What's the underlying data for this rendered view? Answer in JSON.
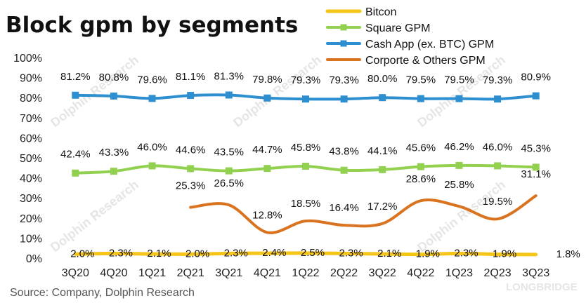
{
  "chart_data": {
    "type": "line",
    "title": "Block gpm by segments",
    "categories": [
      "3Q20",
      "4Q20",
      "1Q21",
      "2Q21",
      "3Q21",
      "4Q21",
      "1Q22",
      "2Q22",
      "3Q22",
      "4Q22",
      "1Q23",
      "2Q23",
      "3Q23"
    ],
    "yticks": [
      "0%",
      "10%",
      "20%",
      "30%",
      "40%",
      "50%",
      "60%",
      "70%",
      "80%",
      "90%",
      "100%"
    ],
    "ylim": [
      0,
      100
    ],
    "legend_position": "top-right",
    "series": [
      {
        "name": "Bitcon",
        "color": "#f5c518",
        "marker": "none",
        "values": [
          2.0,
          2.3,
          2.1,
          2.0,
          2.3,
          2.4,
          2.5,
          2.3,
          2.1,
          1.9,
          2.3,
          1.9,
          1.8
        ],
        "labels": [
          "2.0%",
          "2.3%",
          "2.1%",
          "2.0%",
          "2.3%",
          "2.4%",
          "2.5%",
          "2.3%",
          "2.1%",
          "1.9%",
          "2.3%",
          "1.9%",
          "1.8%"
        ]
      },
      {
        "name": "Square GPM",
        "color": "#92d050",
        "marker": "square",
        "values": [
          42.4,
          43.3,
          46.0,
          44.6,
          43.5,
          44.7,
          45.8,
          43.8,
          44.1,
          45.6,
          46.2,
          46.0,
          45.3
        ],
        "labels": [
          "42.4%",
          "43.3%",
          "46.0%",
          "44.6%",
          "43.5%",
          "44.7%",
          "45.8%",
          "43.8%",
          "44.1%",
          "45.6%",
          "46.2%",
          "46.0%",
          "45.3%"
        ]
      },
      {
        "name": "Cash App (ex. BTC) GPM",
        "color": "#2e8fd0",
        "marker": "square",
        "values": [
          81.2,
          80.8,
          79.6,
          81.1,
          81.3,
          79.8,
          79.3,
          79.3,
          80.0,
          79.5,
          79.5,
          79.3,
          80.9
        ],
        "labels": [
          "81.2%",
          "80.8%",
          "79.6%",
          "81.1%",
          "81.3%",
          "79.8%",
          "79.3%",
          "79.3%",
          "80.0%",
          "79.5%",
          "79.5%",
          "79.3%",
          "80.9%"
        ]
      },
      {
        "name": "Corporte & Others GPM",
        "color": "#d9731f",
        "marker": "none",
        "values": [
          null,
          null,
          null,
          25.3,
          26.5,
          12.8,
          18.5,
          16.4,
          17.2,
          28.6,
          25.8,
          19.5,
          31.1
        ],
        "labels": [
          null,
          null,
          null,
          "25.3%",
          "26.5%",
          "12.8%",
          "18.5%",
          "16.4%",
          "17.2%",
          "28.6%",
          "25.8%",
          "19.5%",
          "31.1%"
        ]
      }
    ]
  },
  "source_text": "Source: Company, Dolphin Research",
  "watermarks": [
    "Dolphin Research",
    "LONGBRIDGE"
  ]
}
